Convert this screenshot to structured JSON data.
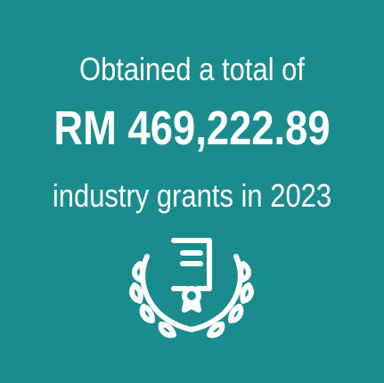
{
  "background_color": "#1b8c8e",
  "text_color": "#ffffff",
  "headline": {
    "line1": "Obtained a total of",
    "amount": "RM 469,222.89",
    "line2": "industry grants in 2023"
  },
  "icon": "certificate-laurel-icon"
}
